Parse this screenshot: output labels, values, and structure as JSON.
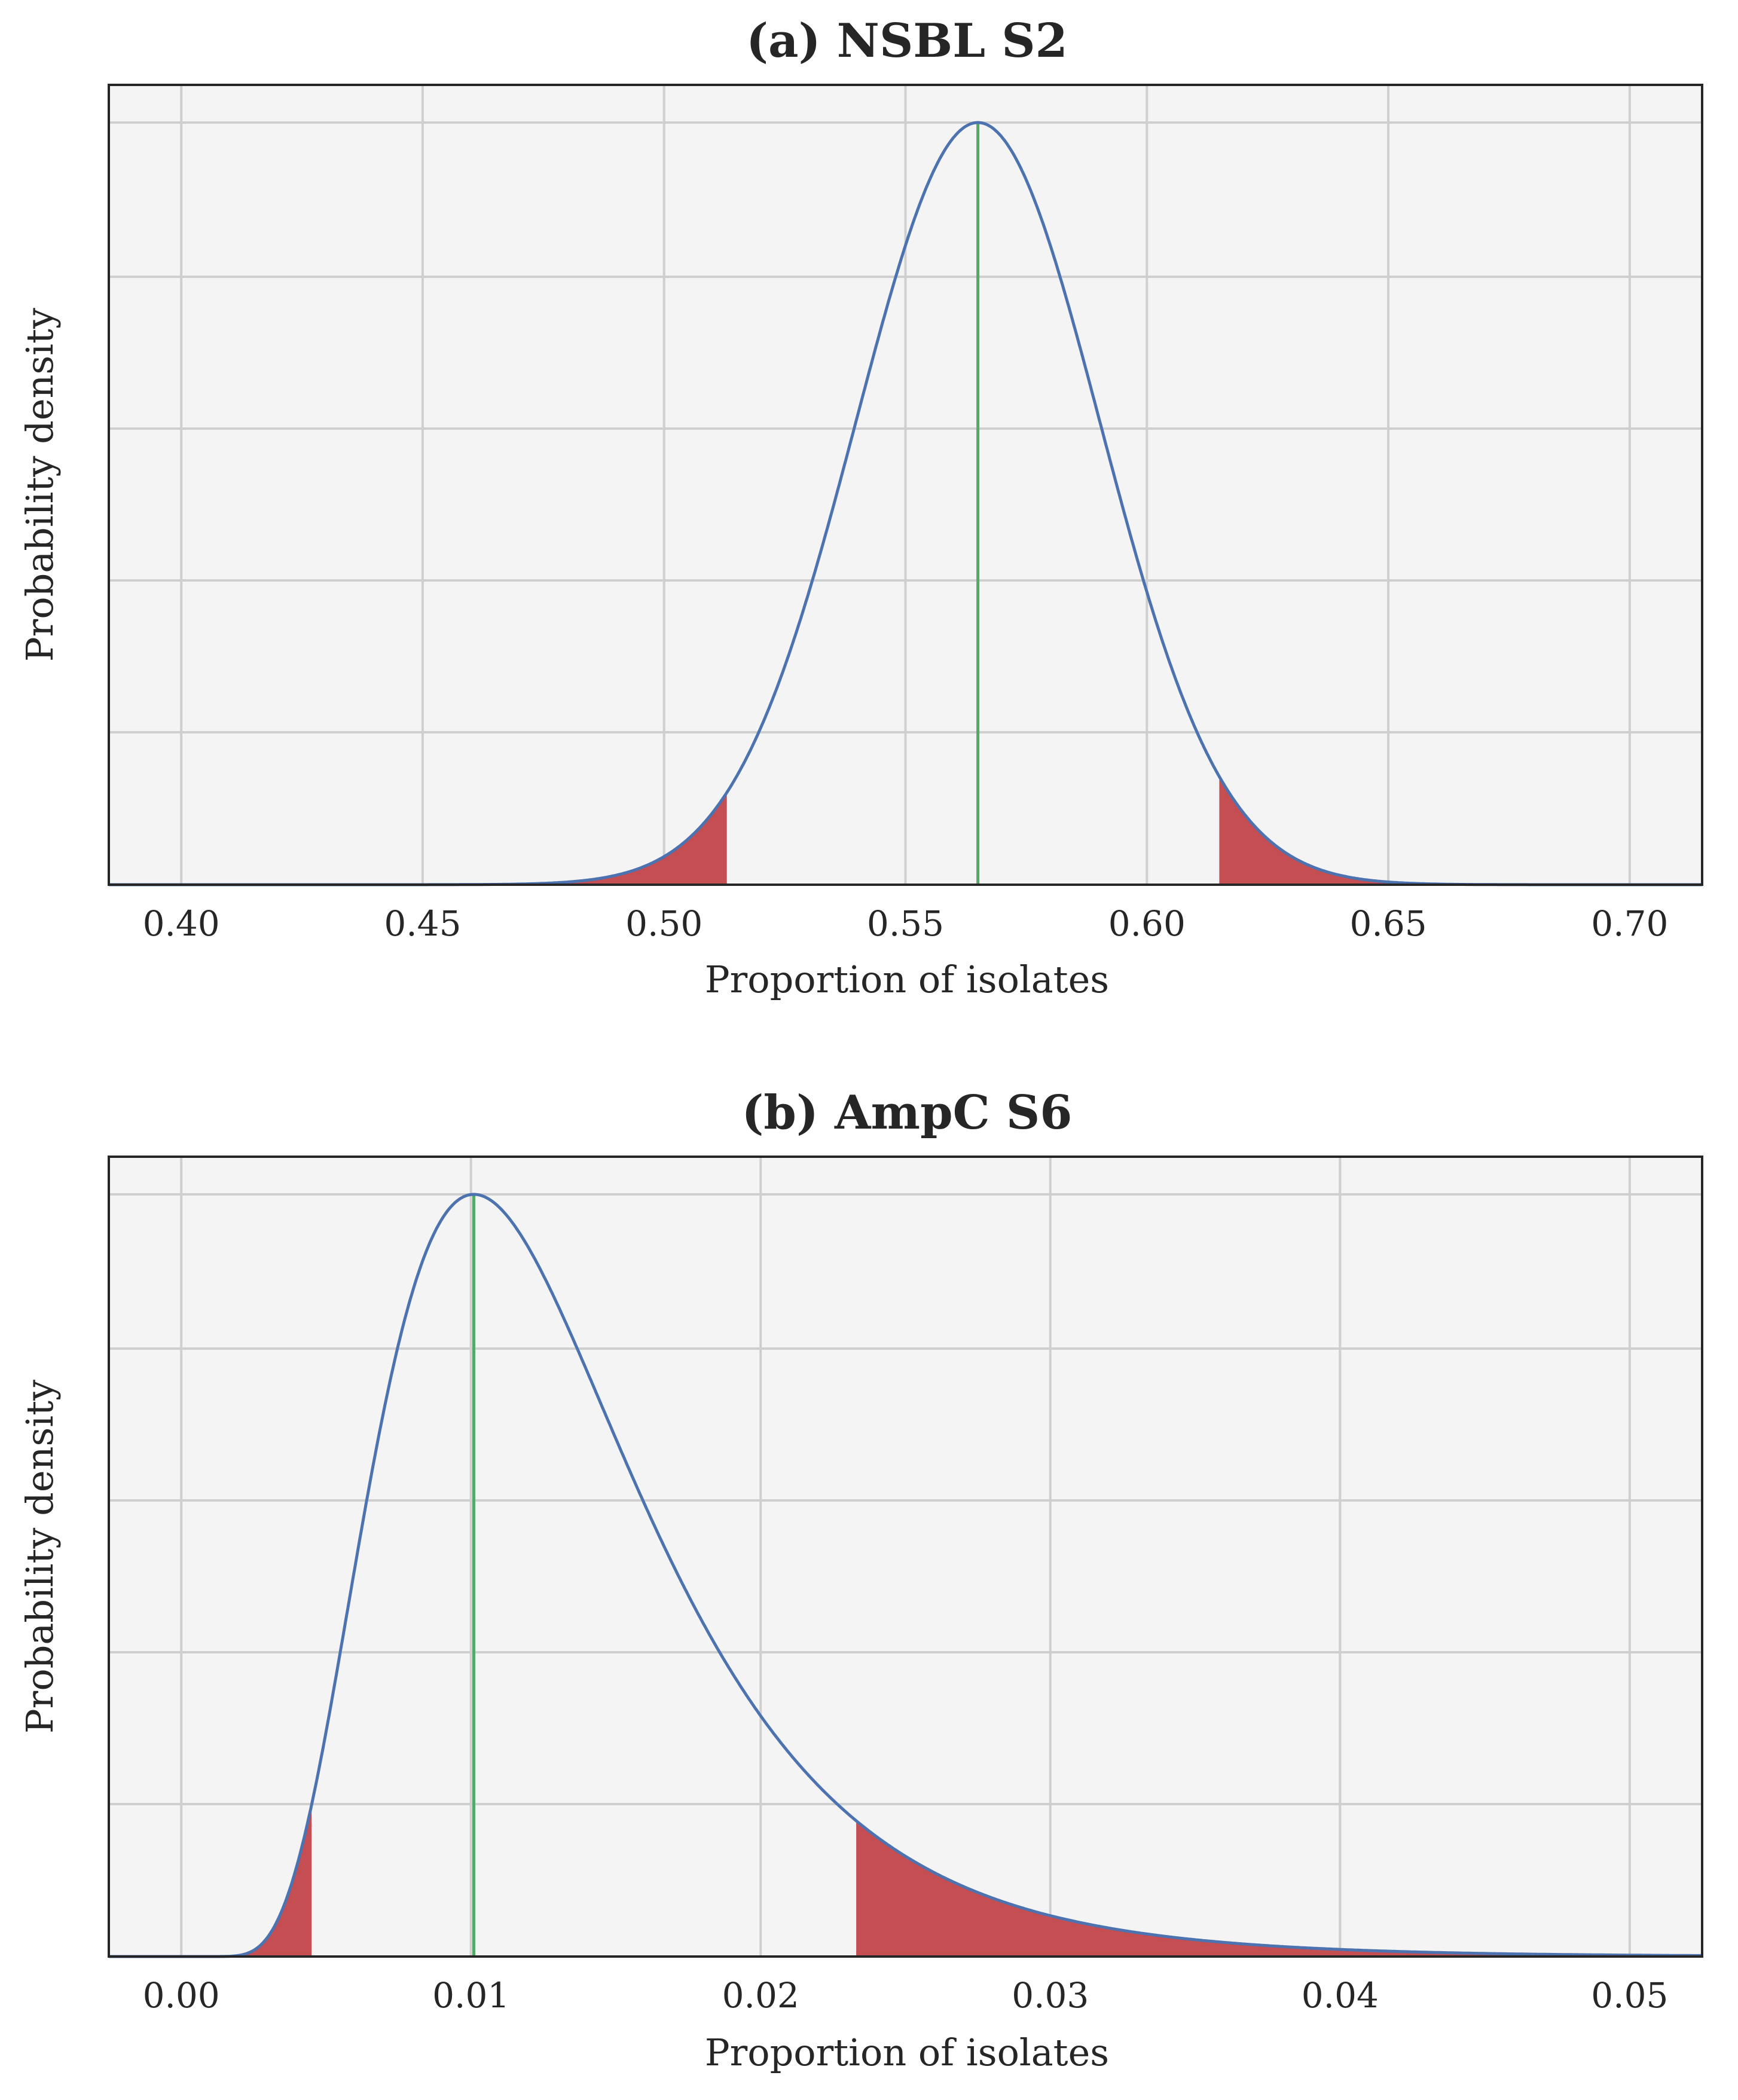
{
  "chart_data": [
    {
      "type": "area",
      "title": "(a) NSBL S2",
      "xlabel": "Proportion of isolates",
      "ylabel": "Probability density",
      "xticks": [
        "0.40",
        "0.45",
        "0.50",
        "0.55",
        "0.60",
        "0.65",
        "0.70"
      ],
      "xlim": [
        0.385,
        0.715
      ],
      "grid": true,
      "yticklabels_shown": false,
      "distribution": {
        "name": "approximately normal",
        "mode": 0.565,
        "sd": 0.0253
      },
      "point_estimate": 0.565,
      "shaded_tails": [
        [
          0.385,
          0.513
        ],
        [
          0.615,
          0.715
        ]
      ],
      "colors": {
        "curve": "#4c72b0",
        "estimate_line": "#55a868",
        "tail_fill": "#c44e52",
        "plot_bg": "#f4f4f4",
        "grid": "#cfcfcf"
      }
    },
    {
      "type": "area",
      "title": "(b) AmpC S6",
      "xlabel": "Proportion of isolates",
      "ylabel": "Probability density",
      "xticks": [
        "0.00",
        "0.01",
        "0.02",
        "0.03",
        "0.04",
        "0.05"
      ],
      "xlim": [
        -0.0025,
        0.0525
      ],
      "grid": true,
      "yticklabels_shown": false,
      "distribution": {
        "name": "right-skewed (approximately lognormal)",
        "mode": 0.0101,
        "log_sigma": 0.45
      },
      "point_estimate": 0.0101,
      "shaded_tails": [
        [
          0.0,
          0.0045
        ],
        [
          0.0233,
          0.0525
        ]
      ],
      "colors": {
        "curve": "#4c72b0",
        "estimate_line": "#55a868",
        "tail_fill": "#c44e52",
        "plot_bg": "#f4f4f4",
        "grid": "#cfcfcf"
      }
    }
  ]
}
